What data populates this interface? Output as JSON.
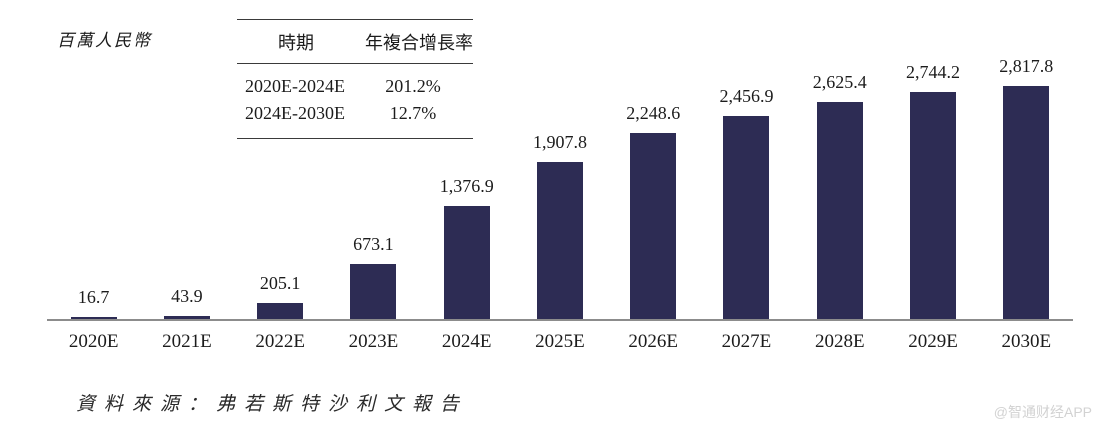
{
  "unit_label": "百萬人民幣",
  "cagr_table": {
    "col_period": "時期",
    "col_cagr": "年複合增長率",
    "rows": [
      {
        "period": "2020E-2024E",
        "cagr": "201.2%"
      },
      {
        "period": "2024E-2030E",
        "cagr": "12.7%"
      }
    ]
  },
  "chart_data": {
    "type": "bar",
    "title": "",
    "ylabel": "百萬人民幣",
    "xlabel": "",
    "categories": [
      "2020E",
      "2021E",
      "2022E",
      "2023E",
      "2024E",
      "2025E",
      "2026E",
      "2027E",
      "2028E",
      "2029E",
      "2030E"
    ],
    "values": [
      16.7,
      43.9,
      205.1,
      673.1,
      1376.9,
      1907.8,
      2248.6,
      2456.9,
      2625.4,
      2744.2,
      2817.8
    ],
    "value_labels": [
      "16.7",
      "43.9",
      "205.1",
      "673.1",
      "1,376.9",
      "1,907.8",
      "2,248.6",
      "2,456.9",
      "2,625.4",
      "2,744.2",
      "2,817.8"
    ],
    "ylim": [
      0,
      2900
    ],
    "grid": false,
    "legend_position": "none",
    "bar_color": "#2d2c54",
    "axis_color": "#8c8c8c"
  },
  "source_note": "資料來源：弗若斯特沙利文報告",
  "watermark": "@智通财经APP"
}
